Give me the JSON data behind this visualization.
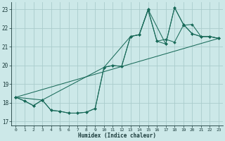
{
  "xlabel": "Humidex (Indice chaleur)",
  "background_color": "#cce8e8",
  "grid_color": "#aacccc",
  "line_color": "#1a6b5a",
  "xlim": [
    -0.5,
    23.5
  ],
  "ylim": [
    16.8,
    23.4
  ],
  "yticks": [
    17,
    18,
    19,
    20,
    21,
    22,
    23
  ],
  "xticks": [
    0,
    1,
    2,
    3,
    4,
    5,
    6,
    7,
    8,
    9,
    10,
    11,
    12,
    13,
    14,
    15,
    16,
    17,
    18,
    19,
    20,
    21,
    22,
    23
  ],
  "lines": [
    {
      "x": [
        0,
        1,
        2,
        3,
        4,
        5,
        6,
        7,
        8,
        9,
        10,
        11,
        12,
        13,
        14,
        15,
        16,
        17,
        18,
        19,
        20,
        21,
        22,
        23
      ],
      "y": [
        18.3,
        18.1,
        17.85,
        18.15,
        17.6,
        17.55,
        17.45,
        17.45,
        17.5,
        17.7,
        19.9,
        20.0,
        19.95,
        21.55,
        21.65,
        22.95,
        21.3,
        21.15,
        23.1,
        22.2,
        21.7,
        21.55,
        21.55,
        21.45
      ],
      "marker": true
    },
    {
      "x": [
        0,
        1,
        2,
        3,
        4,
        5,
        6,
        7,
        8,
        9,
        10,
        11,
        12,
        13,
        14,
        15,
        16,
        17,
        18,
        19,
        20,
        21,
        22,
        23
      ],
      "y": [
        18.3,
        18.1,
        17.85,
        18.15,
        17.6,
        17.55,
        17.45,
        17.45,
        17.5,
        17.7,
        19.9,
        20.0,
        19.95,
        21.55,
        21.65,
        23.0,
        21.3,
        21.4,
        21.25,
        22.15,
        22.2,
        21.55,
        21.55,
        21.45
      ],
      "marker": true
    },
    {
      "x": [
        0,
        23
      ],
      "y": [
        18.3,
        21.45
      ],
      "marker": false
    },
    {
      "x": [
        0,
        3,
        10,
        13,
        14,
        15,
        17,
        18,
        19,
        20,
        21,
        22,
        23
      ],
      "y": [
        18.3,
        18.15,
        19.9,
        21.55,
        21.65,
        23.0,
        21.15,
        23.1,
        22.2,
        21.7,
        21.55,
        21.55,
        21.45
      ],
      "marker": true
    }
  ]
}
